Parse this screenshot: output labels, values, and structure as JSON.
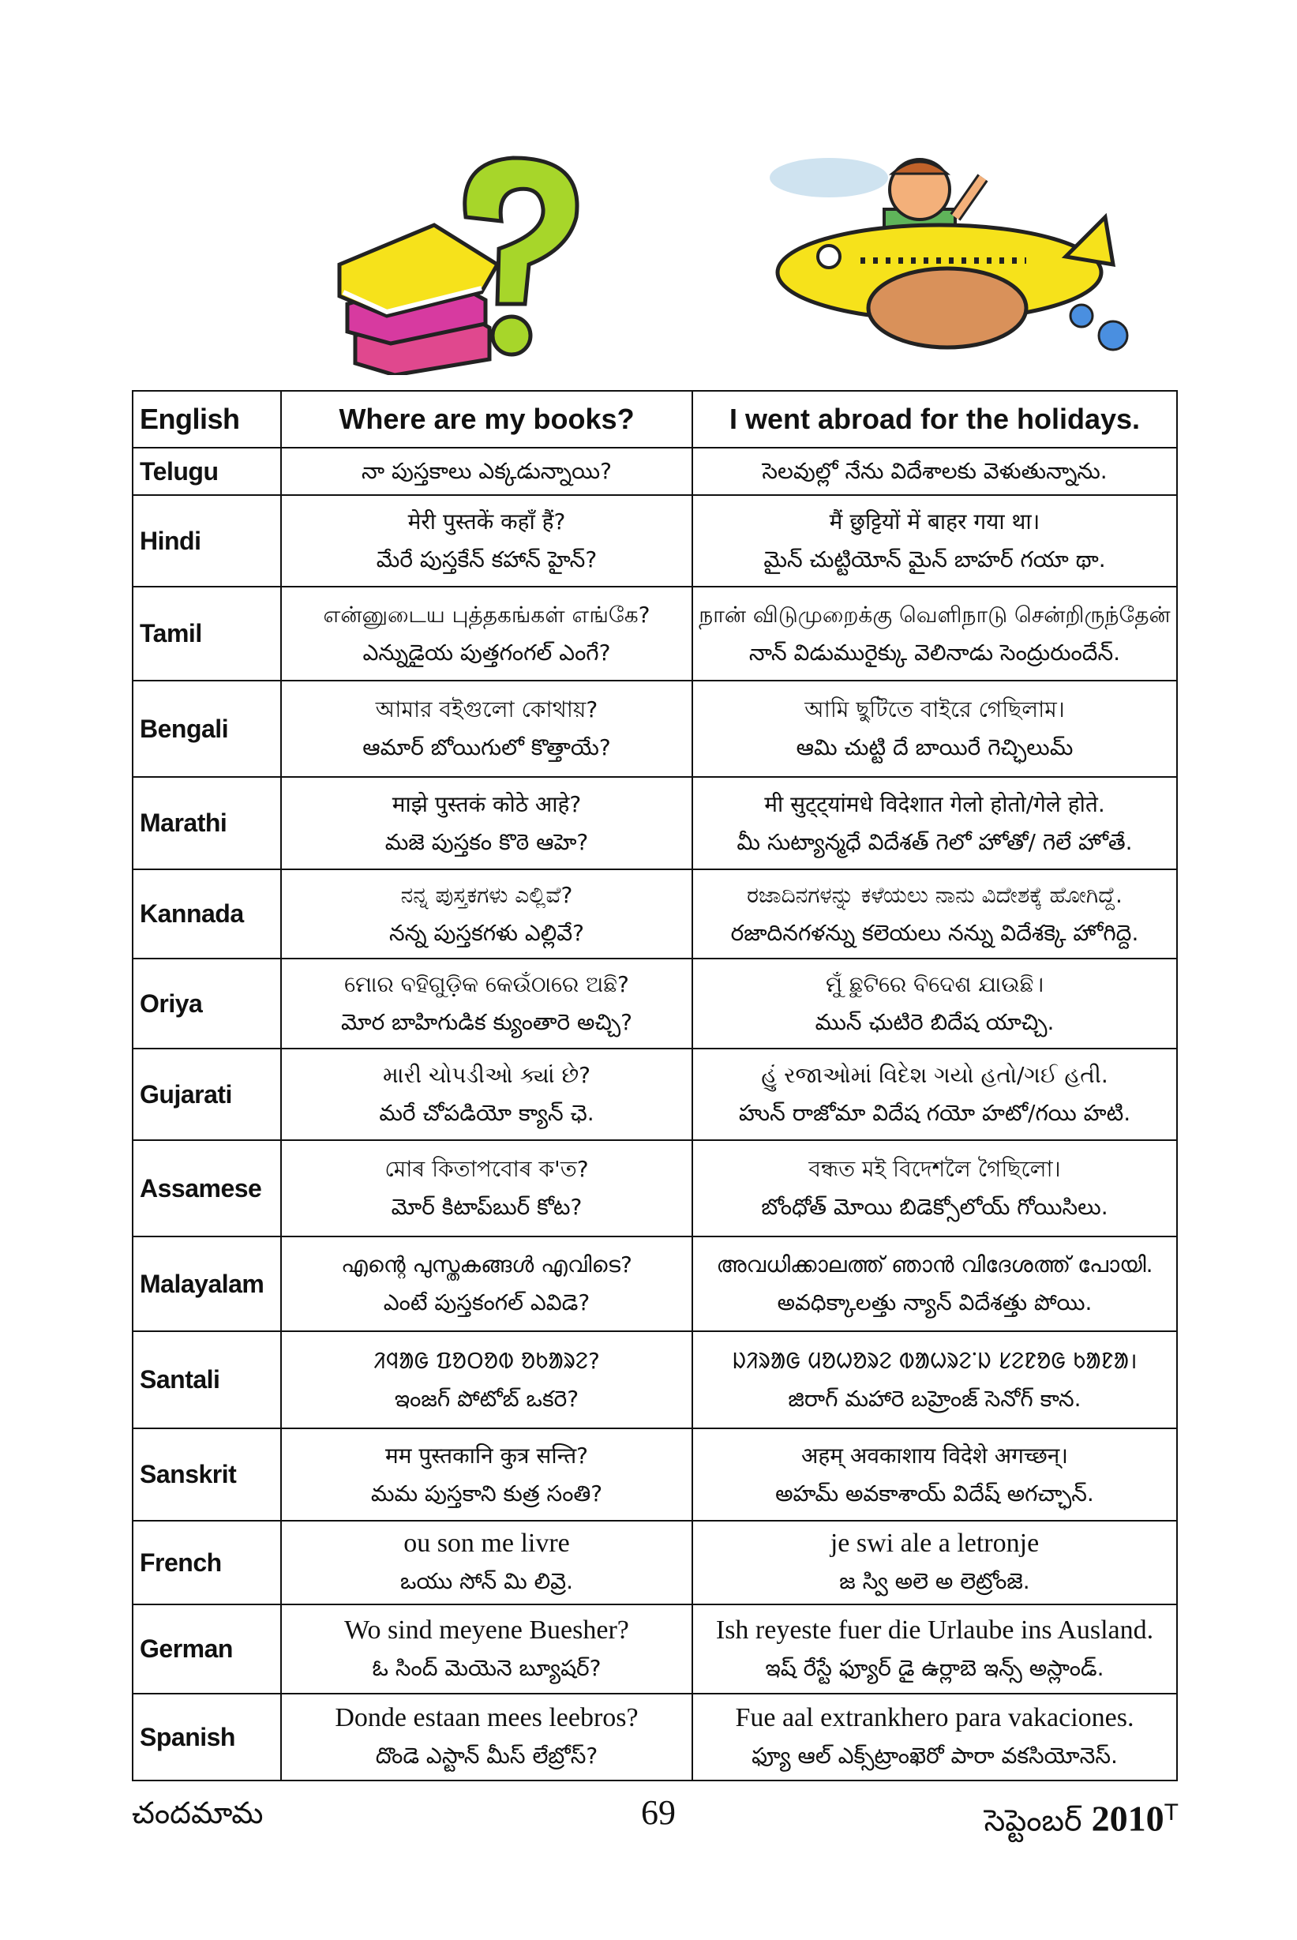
{
  "header": {
    "col_language": "English",
    "col_q": "Where are my books?",
    "col_a": "I went abroad for the holidays."
  },
  "rows": [
    {
      "lang": "Telugu",
      "q": [
        "నా పుస్తకాలు ఎక్కడున్నాయి?"
      ],
      "a": [
        "సెలవుల్లో నేను విదేశాలకు వెళుతున్నాను."
      ]
    },
    {
      "lang": "Hindi",
      "q": [
        "मेरी पुस्तकें कहाँ हैं?",
        "మేరే పుస్తకేన్ కహాన్ హైన్?"
      ],
      "a": [
        "मैं छुट्टियों में बाहर गया था।",
        "మైన్ చుట్టియోన్ మైన్ బాహర్ గయా థా."
      ]
    },
    {
      "lang": "Tamil",
      "q": [
        "என்னுடைய புத்தகங்கள் எங்கே?",
        "ఎన్నుడైయ పుత్తగంగల్ ఎంగే?"
      ],
      "a": [
        "நான் விடுமுறைக்கு வெளிநாடு சென்றிருந்தேன்",
        "నాన్ విడుమురైక్కు వెలినాడు సెంద్రురుందేన్."
      ]
    },
    {
      "lang": "Bengali",
      "q": [
        "আমার বইগুলো কোথায়?",
        "ఆమార్ బోయిగులో కొత్తాయే?"
      ],
      "a": [
        "আমি ছুটিতে বাইরে গেছিলাম।",
        "ఆమి చుట్టి దే బాయిరే గెచ్ఛిలుమ్"
      ]
    },
    {
      "lang": "Marathi",
      "q": [
        "माझे पुस्तकं कोठे आहे?",
        "మజె పుస్తకం కొఠె ఆహె?"
      ],
      "a": [
        "मी सुट्ट्यांमधे विदेशात गेलो होतो/गेले होते.",
        "మీ సుట్యాన్మధే విదేశత్ గెలో హోతో/ గెలే హోతే."
      ]
    },
    {
      "lang": "Kannada",
      "q": [
        "ನನ್ನ ಪುಸ್ತಕಗಳು ಎಲ್ಲಿವೆ?",
        "నన్న పుస్తకగళు ఎల్లివే?"
      ],
      "a": [
        "ರಜಾದಿನಗಳನ್ನು ಕಳೆಯಲು ನಾನು ವಿದೇಶಕ್ಕೆ ಹೋಗಿದ್ದೆ.",
        "రజాదినగళన్ను కలెయలు నన్ను విదేశక్కె హోగిద్దె."
      ]
    },
    {
      "lang": "Oriya",
      "q": [
        "ମୋର ବହିଗୁଡ଼ିକ କେଉଁଠାରେ ଅଛି?",
        "మోర బాహిగుడిక క్యుంతారె అచ్చి?"
      ],
      "a": [
        "ମୁଁ ଛୁଟିରେ ବିଦେଶ ଯାଉଛି।",
        "మున్ ఛుటిరె బిదేష యాచ్చి."
      ]
    },
    {
      "lang": "Gujarati",
      "q": [
        "મારી ચોપડીઓ ક્યાં છે?",
        "మరే చోపడియో క్యాన్ ఛె."
      ],
      "a": [
        "હું રજાઓમાં વિદેશ ગયો હતો/ગઈ હતી.",
        "హున్ రాజోమా విదేష గయో హటో/గయి హటి."
      ]
    },
    {
      "lang": "Assamese",
      "q": [
        "মোৰ কিতাপবোৰ ক'ত?",
        "మోర్ కిటాప్‌బుర్ కోట?"
      ],
      "a": [
        "বন্ধত মই বিদেশলৈ গৈছিলো।",
        "బోంధోత్ మోయి బిడెక్సోలోయ్ గోయిసిలు."
      ]
    },
    {
      "lang": "Malayalam",
      "q": [
        "എന്റെ പുസ്തകങ്ങൾ എവിടെ?",
        "ఎంటే పుస్తకంగల్ ఎవిడె?"
      ],
      "a": [
        "അവധിക്കാലത്ത് ഞാൻ വിദേശത്ത് പോയി.",
        "అవధిక్కాలత్తు న్యాన్ విదేశత్తు పోయి."
      ]
    },
    {
      "lang": "Santali",
      "q": [
        "ᱤᱧᱟᱜ ᱯᱚᱛᱚᱵ ᱚᱠᱟᱨᱮ?",
        "ఇంజగ్ పోటోబ్ ఒకరె?"
      ],
      "a": [
        "ᱡᱤᱨᱟᱜ ᱢᱚᱦᱚᱨᱮ ᱵᱟᱦᱨᱮᱸᱡ ᱥᱮᱱᱚᱜ ᱠᱟᱱᱟ।",
        "జిరాగ్ మహారె బహ్రెంజ్ సెనోగ్ కాన."
      ]
    },
    {
      "lang": "Sanskrit",
      "q": [
        "मम पुस्तकानि कुत्र सन्ति?",
        "మమ పుస్తకాని కుత్ర సంతి?"
      ],
      "a": [
        "अहम् अवकाशाय विदेशे अगच्छन्।",
        "అహమ్ అవకాశాయ్ విదేష్ అగచ్ఛాన్."
      ]
    },
    {
      "lang": "French",
      "serif": true,
      "q": [
        "ou son me livre",
        "ఒయు సోన్ మి లివ్రె."
      ],
      "a": [
        "je swi ale a letronje",
        "జ స్వి అలె అ లెట్రోంజె."
      ]
    },
    {
      "lang": "German",
      "serif": true,
      "q": [
        "Wo sind meyene Buesher?",
        "ఓ సింద్ మెయెనె బ్యూషర్?"
      ],
      "a": [
        "Ish reyeste fuer die Urlaube ins Ausland.",
        "ఇష్ రేస్టే ఫ్యూర్ డై ఉర్లాబె ఇన్స్ అస్లాండ్."
      ]
    },
    {
      "lang": "Spanish",
      "serif": true,
      "q": [
        "Donde estaan mees leebros?",
        "దొండె ఎస్టాన్ మీస్ లేబ్రోస్?"
      ],
      "a": [
        "Fue aal extrankhero para vakaciones.",
        "ఫ్యూ ఆల్ ఎక్స్‌ట్రాంఖెరో పారా వకసియోనెస్."
      ]
    }
  ],
  "footer": {
    "magazine": "చందమామ",
    "page": "69",
    "month": "సెప్టెంబర్",
    "year": "2010",
    "mark": "T"
  },
  "illustrations": {
    "left": "books-question-mark",
    "right": "boy-on-airplane"
  }
}
